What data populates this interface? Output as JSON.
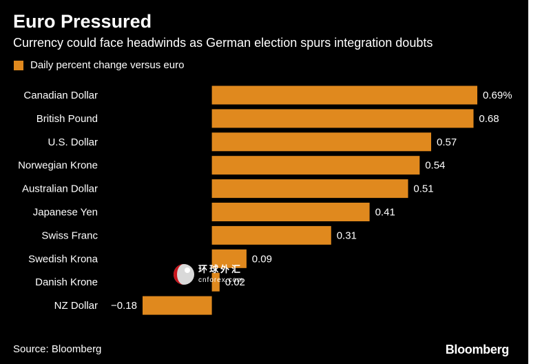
{
  "header": {
    "title": "Euro Pressured",
    "subtitle": "Currency could face headwinds as German election spurs integration doubts"
  },
  "footer": {
    "source": "Source: Bloomberg",
    "brand": "Bloomberg"
  },
  "watermark": {
    "text_cn": "环球外汇",
    "text_en": "cnforex.com"
  },
  "colors": {
    "background": "#000000",
    "bar": "#e0891e",
    "text": "#ffffff"
  },
  "chart_data": {
    "type": "bar",
    "orientation": "horizontal",
    "categories": [
      "Canadian Dollar",
      "British Pound",
      "U.S. Dollar",
      "Norwegian Krone",
      "Australian Dollar",
      "Japanese Yen",
      "Swiss Franc",
      "Swedish Krona",
      "Danish Krone",
      "NZ Dollar"
    ],
    "series": [
      {
        "name": "Daily percent change versus euro",
        "values": [
          0.69,
          0.68,
          0.57,
          0.54,
          0.51,
          0.41,
          0.31,
          0.09,
          0.02,
          -0.18
        ]
      }
    ],
    "value_labels": [
      "0.69%",
      "0.68",
      "0.57",
      "0.54",
      "0.51",
      "0.41",
      "0.31",
      "0.09",
      "0.02",
      "−0.18"
    ],
    "title": "Euro Pressured",
    "subtitle": "Currency could face headwinds as German election spurs integration doubts",
    "xlim": [
      -0.18,
      0.69
    ],
    "grid": false,
    "legend": "top-left"
  }
}
